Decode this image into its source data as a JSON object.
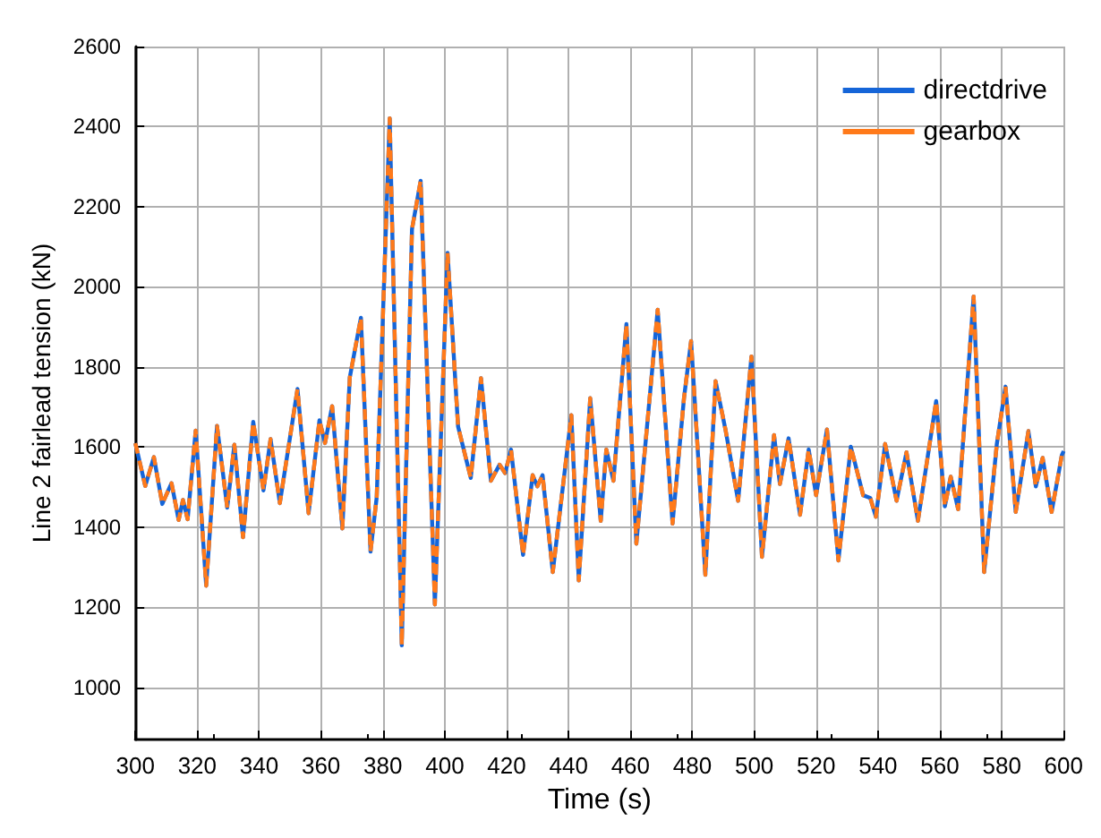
{
  "chart_data": {
    "type": "line",
    "xlabel": "Time (s)",
    "ylabel": "Line 2 fairlead tension (kN)",
    "x": [
      300,
      303.2,
      306,
      308.7,
      311.7,
      314,
      315.4,
      316.9,
      319.5,
      322.9,
      326.4,
      329.7,
      332,
      334.8,
      338.1,
      341.4,
      343.7,
      346.7,
      352.4,
      356,
      359.5,
      361.3,
      363.6,
      366.9,
      369.3,
      372.9,
      376,
      378,
      382.2,
      386.1,
      389.4,
      392.2,
      396.8,
      400.9,
      404.3,
      408.4,
      411.7,
      414.9,
      417.7,
      419.5,
      421.4,
      425.3,
      428.4,
      429.9,
      431.6,
      434.9,
      440.9,
      443.3,
      447,
      450.4,
      452.2,
      454.5,
      458.7,
      461.9,
      468.8,
      473.6,
      477.3,
      479.6,
      484.2,
      487.5,
      490.7,
      494.8,
      499.1,
      502.5,
      506.4,
      508.3,
      511.1,
      514.8,
      517.6,
      520,
      523.5,
      527.2,
      531.2,
      535.2,
      537.5,
      539.3,
      542.3,
      546,
      549.2,
      552.9,
      558.8,
      561.6,
      563.5,
      565.9,
      570.9,
      574.3,
      578.4,
      581.2,
      584.5,
      588.6,
      591,
      593.2,
      596.1,
      599.4,
      600
    ],
    "series": [
      {
        "name": "directdrive",
        "color": "#1565d8",
        "line_style": "solid",
        "values": [
          1610,
          1503,
          1575,
          1458,
          1510,
          1418,
          1468,
          1420,
          1641,
          1254,
          1653,
          1449,
          1606,
          1375,
          1663,
          1492,
          1620,
          1460,
          1745,
          1435,
          1667,
          1610,
          1702,
          1397,
          1774,
          1923,
          1339,
          1475,
          2421,
          1105,
          2144,
          2265,
          1207,
          2085,
          1651,
          1523,
          1772,
          1516,
          1556,
          1535,
          1594,
          1331,
          1530,
          1502,
          1530,
          1288,
          1680,
          1267,
          1722,
          1416,
          1594,
          1516,
          1907,
          1359,
          1943,
          1409,
          1722,
          1865,
          1281,
          1765,
          1644,
          1466,
          1826,
          1326,
          1630,
          1508,
          1622,
          1431,
          1594,
          1480,
          1644,
          1317,
          1601,
          1480,
          1473,
          1426,
          1608,
          1466,
          1587,
          1416,
          1715,
          1452,
          1526,
          1445,
          1976,
          1288,
          1608,
          1751,
          1438,
          1640,
          1502,
          1573,
          1438,
          1580,
          1590
        ]
      },
      {
        "name": "gearbox",
        "color": "#ff7a1a",
        "line_style": "dashed",
        "values": [
          1610,
          1503,
          1575,
          1458,
          1510,
          1418,
          1468,
          1420,
          1641,
          1254,
          1653,
          1449,
          1606,
          1375,
          1663,
          1492,
          1620,
          1460,
          1745,
          1435,
          1667,
          1610,
          1702,
          1397,
          1774,
          1923,
          1339,
          1475,
          2421,
          1105,
          2144,
          2265,
          1207,
          2085,
          1651,
          1523,
          1772,
          1516,
          1556,
          1535,
          1594,
          1331,
          1530,
          1502,
          1530,
          1288,
          1680,
          1267,
          1722,
          1416,
          1594,
          1516,
          1907,
          1359,
          1943,
          1409,
          1722,
          1865,
          1281,
          1765,
          1644,
          1466,
          1826,
          1326,
          1630,
          1508,
          1622,
          1431,
          1594,
          1480,
          1644,
          1317,
          1601,
          1480,
          1473,
          1426,
          1608,
          1466,
          1587,
          1416,
          1715,
          1452,
          1526,
          1445,
          1976,
          1288,
          1608,
          1751,
          1438,
          1640,
          1502,
          1573,
          1438,
          1580,
          1590
        ]
      }
    ],
    "xlim": [
      300,
      600
    ],
    "xticks": [
      300,
      320,
      340,
      360,
      380,
      400,
      420,
      440,
      460,
      480,
      500,
      520,
      540,
      560,
      580,
      600
    ],
    "ylim": [
      870,
      2600
    ],
    "yticks": [
      1000,
      1200,
      1400,
      1600,
      1800,
      2000,
      2200,
      2400,
      2600
    ],
    "grid": true,
    "legend": "top right",
    "marker": "none"
  }
}
